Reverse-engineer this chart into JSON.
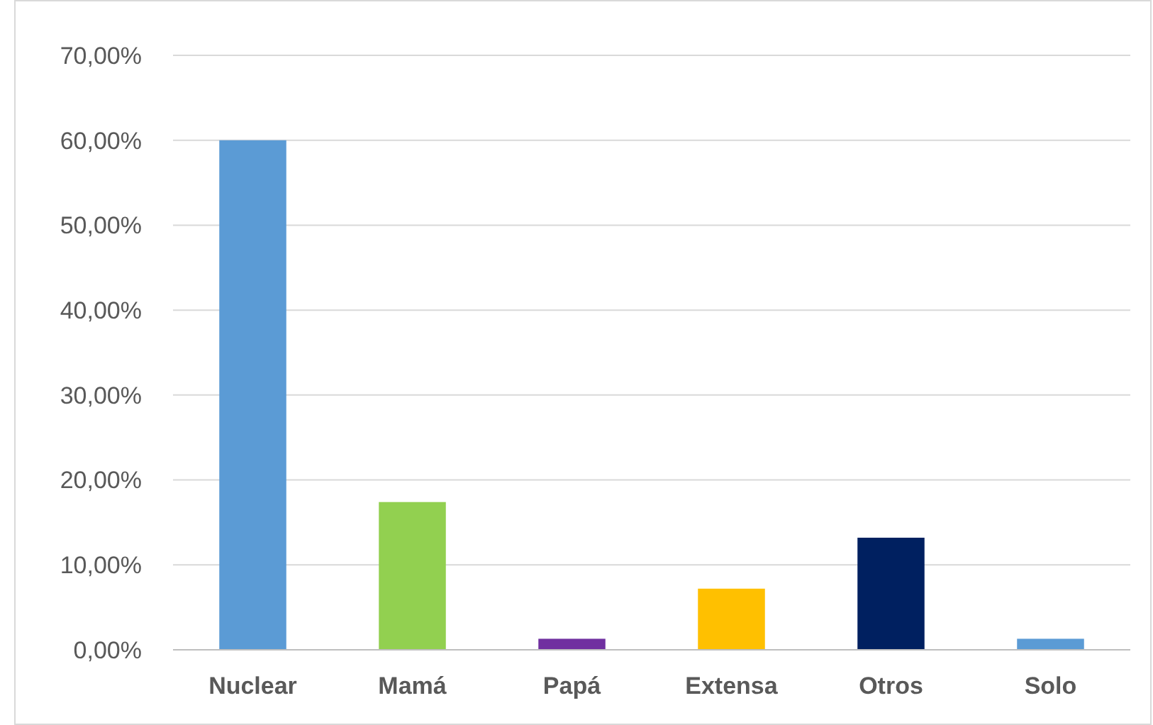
{
  "chart_data": {
    "type": "bar",
    "categories": [
      "Nuclear",
      "Mamá",
      "Papá",
      "Extensa",
      "Otros",
      "Solo"
    ],
    "values": [
      60,
      17.4,
      1.3,
      7.2,
      13.2,
      1.3
    ],
    "colors": [
      "#5b9bd5",
      "#92d050",
      "#7030a0",
      "#ffc000",
      "#002060",
      "#5b9bd5"
    ],
    "ylim": [
      0,
      70
    ],
    "yticks": [
      {
        "value": 0,
        "label": "0,00%"
      },
      {
        "value": 10,
        "label": "10,00%"
      },
      {
        "value": 20,
        "label": "20,00%"
      },
      {
        "value": 30,
        "label": "30,00%"
      },
      {
        "value": 40,
        "label": "40,00%"
      },
      {
        "value": 50,
        "label": "50,00%"
      },
      {
        "value": 60,
        "label": "60,00%"
      },
      {
        "value": 70,
        "label": "70,00%"
      }
    ],
    "grid": "y"
  }
}
